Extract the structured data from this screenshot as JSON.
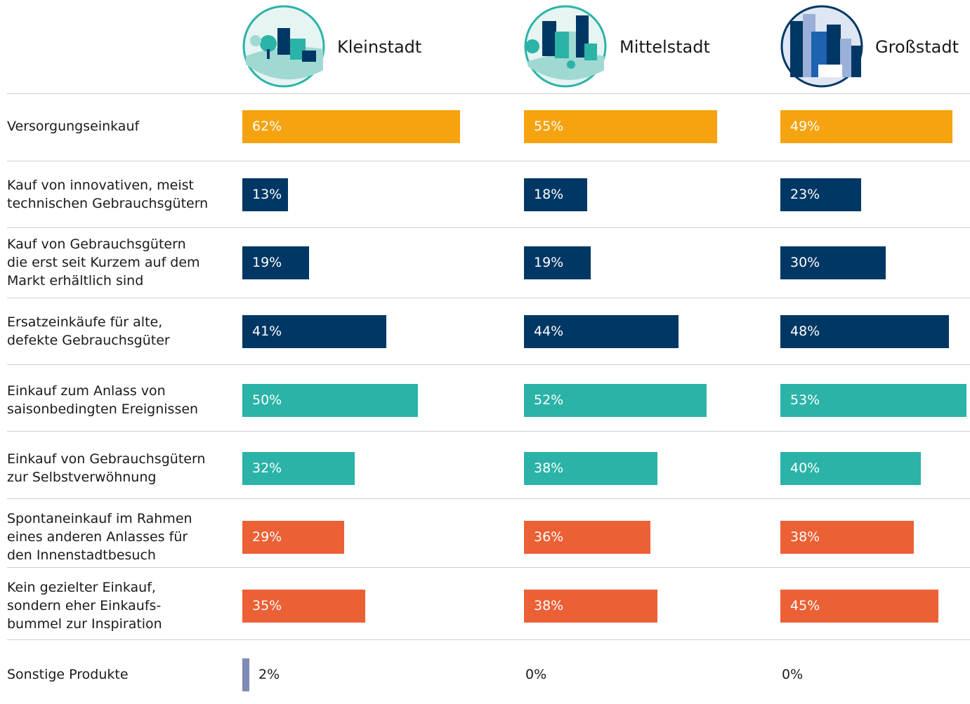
{
  "chart_data": {
    "type": "bar",
    "categories": [
      "Versorgungseinkauf",
      "Kauf von innovativen, meist\ntechnischen Gebrauchsgütern",
      "Kauf von Gebrauchsgütern\ndie erst seit Kurzem auf dem\nMarkt erhältlich sind",
      "Ersatzeinkäufe für alte,\ndefekte Gebrauchsgüter",
      "Einkauf zum Anlass von\nsaisonbedingten Ereignissen",
      "Einkauf von Gebrauchsgütern\nzur Selbstverwöhnung",
      "Spontaneinkauf im Rahmen\neines anderen Anlasses für\nden Innenstadtbesuch",
      "Kein gezielter Einkauf,\nsondern eher Einkaufs-\nbummel zur Inspiration",
      "Sonstige Produkte"
    ],
    "colors": [
      "#f5a30f",
      "#003764",
      "#003764",
      "#003764",
      "#2bb3a8",
      "#2bb3a8",
      "#ec6035",
      "#ec6035",
      "#7f8cb6"
    ],
    "series": [
      {
        "name": "Kleinstadt",
        "values": [
          62,
          13,
          19,
          41,
          50,
          32,
          29,
          35,
          2
        ],
        "value_labels": [
          "62%",
          "13%",
          "19%",
          "41%",
          "50%",
          "32%",
          "29%",
          "35%",
          "2%"
        ]
      },
      {
        "name": "Mittelstadt",
        "values": [
          55,
          18,
          19,
          44,
          52,
          38,
          36,
          38,
          0
        ],
        "value_labels": [
          "55%",
          "18%",
          "19%",
          "44%",
          "52%",
          "38%",
          "36%",
          "38%",
          "0%"
        ]
      },
      {
        "name": "Großstadt",
        "values": [
          49,
          23,
          30,
          48,
          53,
          40,
          38,
          45,
          0
        ],
        "value_labels": [
          "49%",
          "23%",
          "30%",
          "48%",
          "53%",
          "40%",
          "38%",
          "45%",
          "0%"
        ]
      }
    ]
  }
}
